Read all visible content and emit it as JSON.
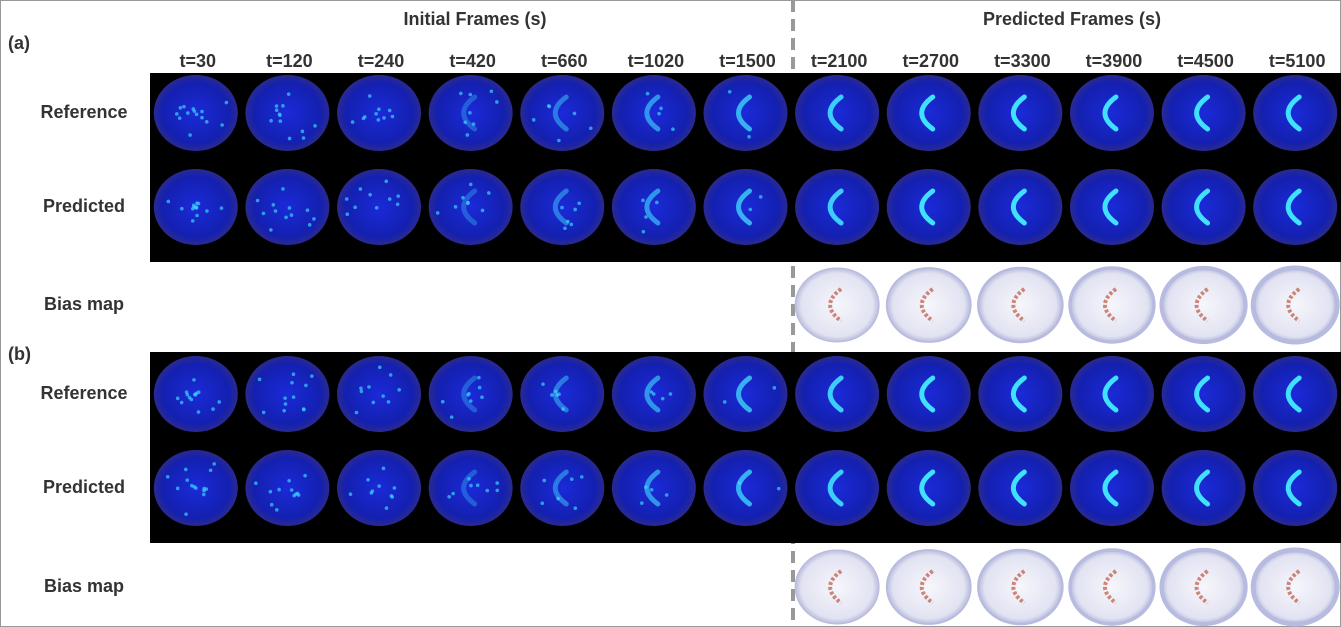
{
  "header": {
    "initial": "Initial Frames (s)",
    "predicted": "Predicted Frames (s)"
  },
  "times": [
    "t=30",
    "t=120",
    "t=240",
    "t=420",
    "t=660",
    "t=1020",
    "t=1500",
    "t=2100",
    "t=2700",
    "t=3300",
    "t=3900",
    "t=4500",
    "t=5100"
  ],
  "panels": [
    {
      "label": "(a)",
      "rows": [
        "Reference",
        "Predicted",
        "Bias map"
      ]
    },
    {
      "label": "(b)",
      "rows": [
        "Reference",
        "Predicted",
        "Bias map"
      ]
    }
  ]
}
